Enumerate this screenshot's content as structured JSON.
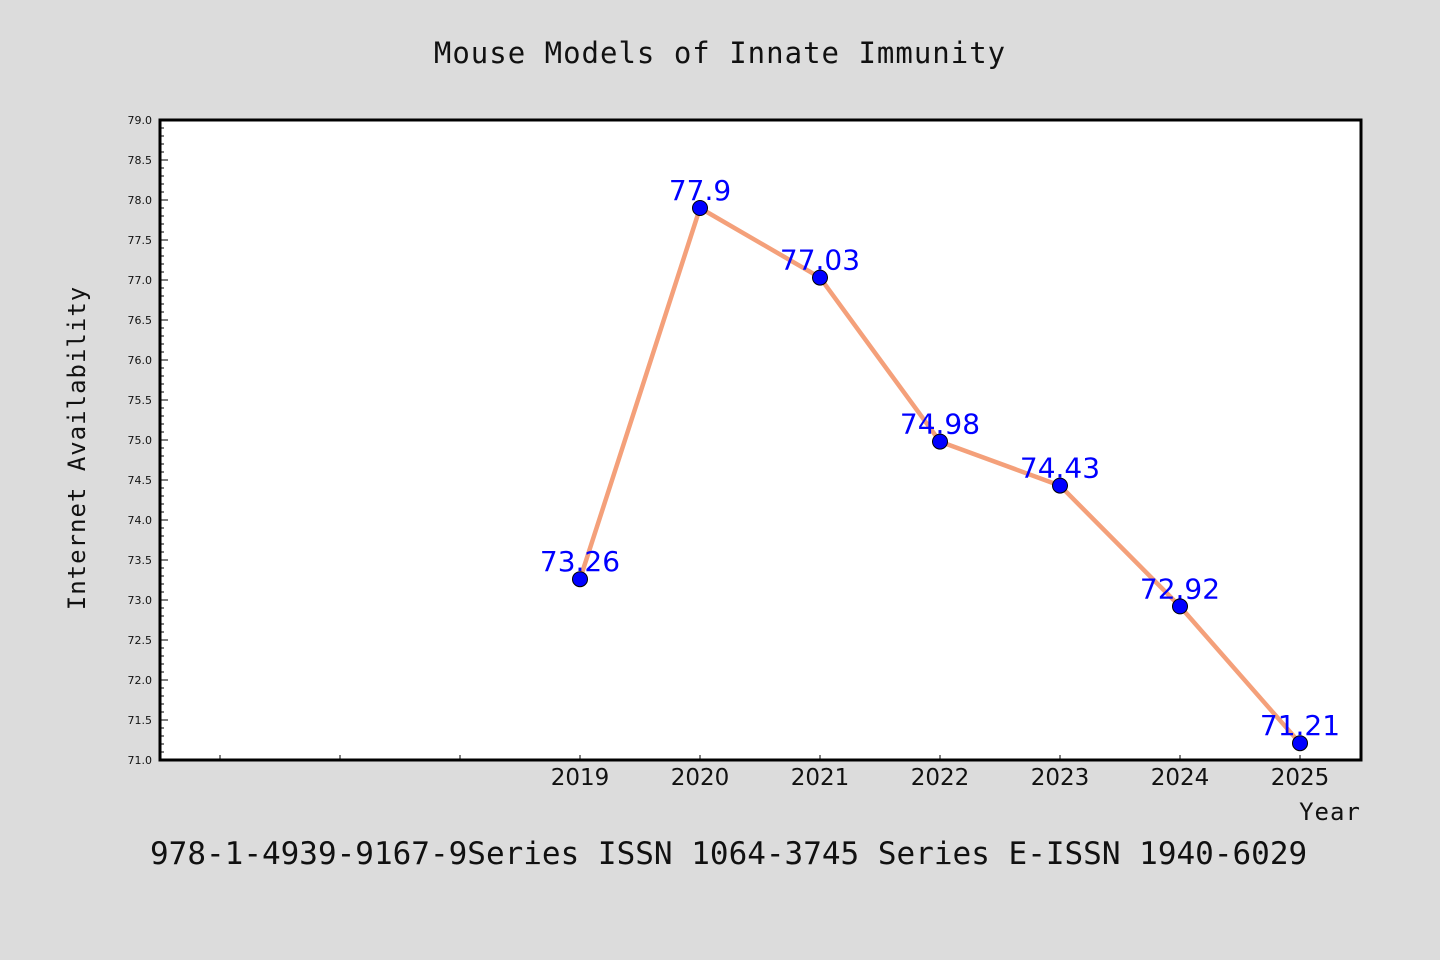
{
  "chart_data": {
    "type": "line",
    "title": "Mouse Models of Innate Immunity",
    "xlabel": "Year",
    "ylabel": "Internet Availability",
    "x": [
      "2019",
      "2020",
      "2021",
      "2022",
      "2023",
      "2024",
      "2025"
    ],
    "series": [
      {
        "values": [
          73.26,
          77.9,
          77.03,
          74.98,
          74.43,
          72.92,
          71.21
        ]
      }
    ],
    "data_labels": [
      "73.26",
      "77.9",
      "77.03",
      "74.98",
      "74.43",
      "72.92",
      "71.21"
    ],
    "ylim": [
      71.0,
      79.0
    ],
    "ytick_step": 0.5,
    "grid": false,
    "legend": "none",
    "line_color": "#f4a07a",
    "marker_color": "#0000ff",
    "label_color": "#0000ff"
  },
  "footer": {
    "text": "978-1-4939-9167-9Series ISSN 1064-3745 Series E-ISSN 1940-6029"
  }
}
